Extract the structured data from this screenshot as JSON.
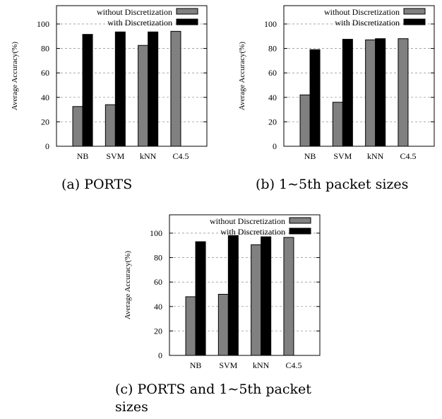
{
  "chart_data": [
    {
      "type": "bar",
      "title": "",
      "caption": "(a) PORTS",
      "xlabel": "",
      "ylabel": "Average Accuracy(%)",
      "ylim": [
        0,
        115
      ],
      "yticks": [
        0,
        20,
        40,
        60,
        80,
        100
      ],
      "grid": "horizontal dashed",
      "legend_position": "top-right",
      "categories": [
        "NB",
        "SVM",
        "kNN",
        "C4.5"
      ],
      "series": [
        {
          "name": "without Discretization",
          "values": [
            32.5,
            34,
            82.5,
            94
          ],
          "color": "#808080"
        },
        {
          "name": "with Discretization",
          "values": [
            91.5,
            93.5,
            93.5,
            0
          ],
          "color": "#000000"
        }
      ]
    },
    {
      "type": "bar",
      "title": "",
      "caption": "(b) 1∼5th packet sizes",
      "xlabel": "",
      "ylabel": "Average Accuracy(%)",
      "ylim": [
        0,
        115
      ],
      "yticks": [
        0,
        20,
        40,
        60,
        80,
        100
      ],
      "grid": "horizontal dashed",
      "legend_position": "top-right",
      "categories": [
        "NB",
        "SVM",
        "kNN",
        "C4.5"
      ],
      "series": [
        {
          "name": "without Discretization",
          "values": [
            42,
            36,
            87,
            88
          ],
          "color": "#808080"
        },
        {
          "name": "with Discretization",
          "values": [
            79,
            87.5,
            88,
            0
          ],
          "color": "#000000"
        }
      ]
    },
    {
      "type": "bar",
      "title": "",
      "caption": "(c) PORTS and 1∼5th packet sizes",
      "xlabel": "",
      "ylabel": "Average Accuracy(%)",
      "ylim": [
        0,
        115
      ],
      "yticks": [
        0,
        20,
        40,
        60,
        80,
        100
      ],
      "grid": "horizontal dashed",
      "legend_position": "top-right",
      "categories": [
        "NB",
        "SVM",
        "kNN",
        "C4.5"
      ],
      "series": [
        {
          "name": "without Discretization",
          "values": [
            48,
            50,
            90.5,
            96.5
          ],
          "color": "#808080"
        },
        {
          "name": "with Discretization",
          "values": [
            93,
            98,
            97,
            0
          ],
          "color": "#000000"
        }
      ]
    }
  ]
}
